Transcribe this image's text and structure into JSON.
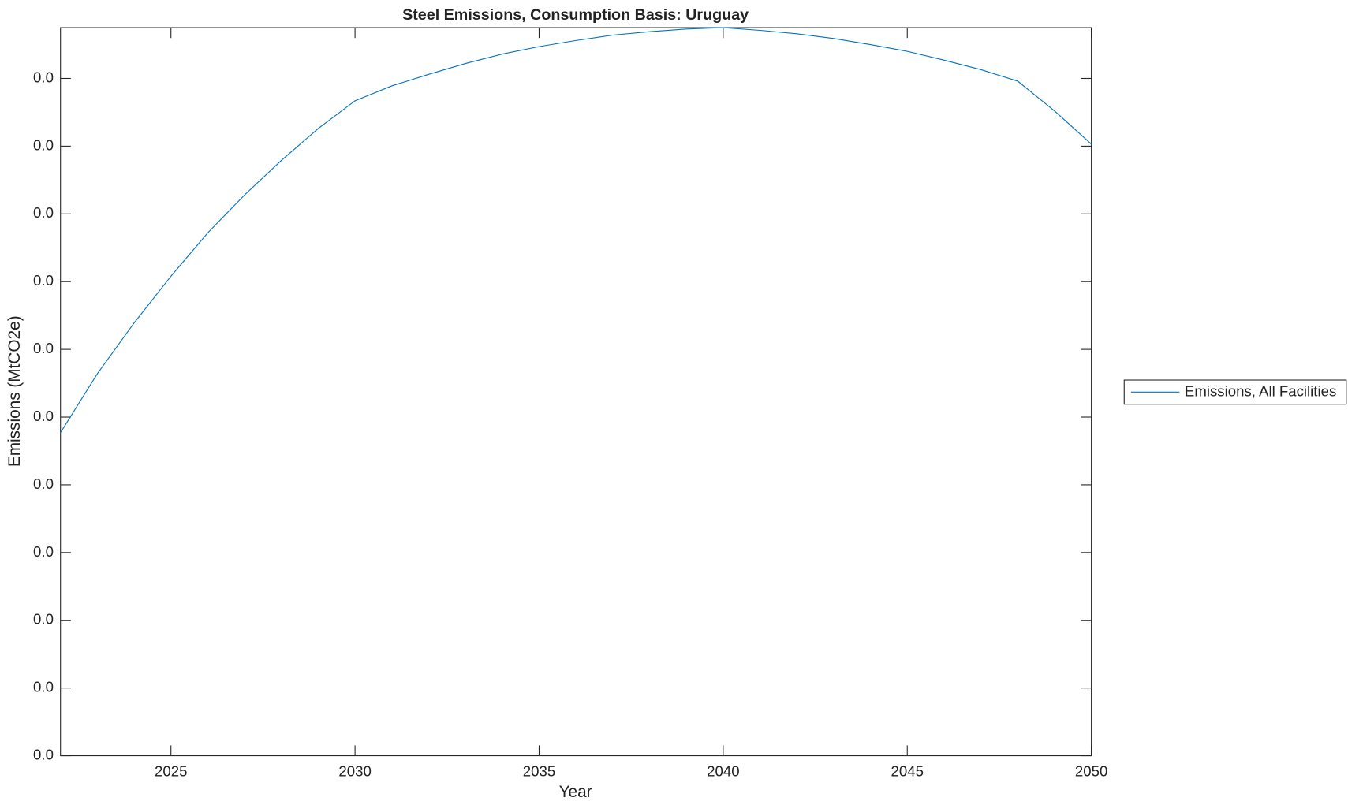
{
  "chart_data": {
    "type": "line",
    "title": "Steel Emissions, Consumption Basis: Uruguay",
    "xlabel": "Year",
    "ylabel": "Emissions (MtCO2e)",
    "x": [
      2022,
      2023,
      2024,
      2025,
      2026,
      2027,
      2028,
      2029,
      2030,
      2031,
      2032,
      2033,
      2034,
      2035,
      2036,
      2037,
      2038,
      2039,
      2040,
      2041,
      2042,
      2043,
      2044,
      2045,
      2046,
      2047,
      2048,
      2049,
      2050
    ],
    "series": [
      {
        "name": "Emissions, All Facilities",
        "color": "#0072bd",
        "values": [
          0.00477,
          0.00564,
          0.00639,
          0.00708,
          0.00772,
          0.00828,
          0.00879,
          0.00926,
          0.00967,
          0.00989,
          0.01006,
          0.01022,
          0.01036,
          0.01047,
          0.01056,
          0.01064,
          0.01069,
          0.01073,
          0.01075,
          0.01071,
          0.01066,
          0.01059,
          0.0105,
          0.0104,
          0.01027,
          0.01013,
          0.00996,
          0.00952,
          0.00903
        ]
      }
    ],
    "xlim": [
      2022,
      2050
    ],
    "xticks": [
      2025,
      2030,
      2035,
      2040,
      2045,
      2050
    ],
    "ylim": [
      0,
      0.01075
    ],
    "yticks": [
      {
        "value": 0,
        "label": "0.0"
      },
      {
        "value": 0.001,
        "label": "0.0"
      },
      {
        "value": 0.002,
        "label": "0.0"
      },
      {
        "value": 0.003,
        "label": "0.0"
      },
      {
        "value": 0.004,
        "label": "0.0"
      },
      {
        "value": 0.005,
        "label": "0.0"
      },
      {
        "value": 0.006,
        "label": "0.0"
      },
      {
        "value": 0.007,
        "label": "0.0"
      },
      {
        "value": 0.008,
        "label": "0.0"
      },
      {
        "value": 0.009,
        "label": "0.0"
      },
      {
        "value": 0.01,
        "label": "0.0"
      }
    ],
    "grid": false,
    "legend": "east-outside"
  }
}
